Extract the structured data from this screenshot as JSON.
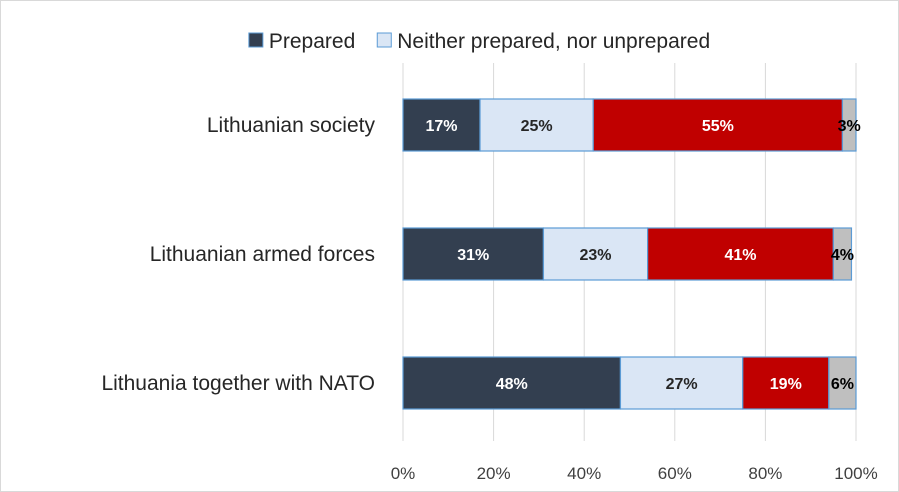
{
  "chart_data": {
    "type": "bar",
    "orientation": "horizontal",
    "stacked": true,
    "categories": [
      "Lithuanian society",
      "Lithuanian armed forces",
      "Lithuania together with NATO"
    ],
    "series": [
      {
        "name": "Prepared",
        "values": [
          17,
          31,
          48
        ],
        "color": "#333f50",
        "label_color": "#ffffff",
        "labels": [
          "17%",
          "31%",
          "48%"
        ]
      },
      {
        "name": "Neither prepared, nor unprepared",
        "values": [
          25,
          23,
          27
        ],
        "color": "#dae6f5",
        "label_color": "#262626",
        "labels": [
          "25%",
          "23%",
          "27%"
        ]
      },
      {
        "values": [
          55,
          41,
          19
        ],
        "color": "#c00000",
        "label_color": "#ffffff",
        "labels": [
          "55%",
          "41%",
          "19%"
        ]
      },
      {
        "values": [
          3,
          4,
          6
        ],
        "color": "#bfbfbf",
        "label_color": "#000000",
        "labels": [
          "3%",
          "4%",
          "6%"
        ]
      }
    ],
    "xlim": [
      0,
      100
    ],
    "xticks": [
      0,
      20,
      40,
      60,
      80,
      100
    ],
    "xtick_labels": [
      "0%",
      "20%",
      "40%",
      "60%",
      "80%",
      "100%"
    ],
    "grid": "vertical",
    "grid_color": "#d9d9d9",
    "bar_border_color": "#5b9bd5",
    "legend_position": "top",
    "legend": [
      "Prepared",
      "Neither prepared, nor unprepared"
    ]
  }
}
